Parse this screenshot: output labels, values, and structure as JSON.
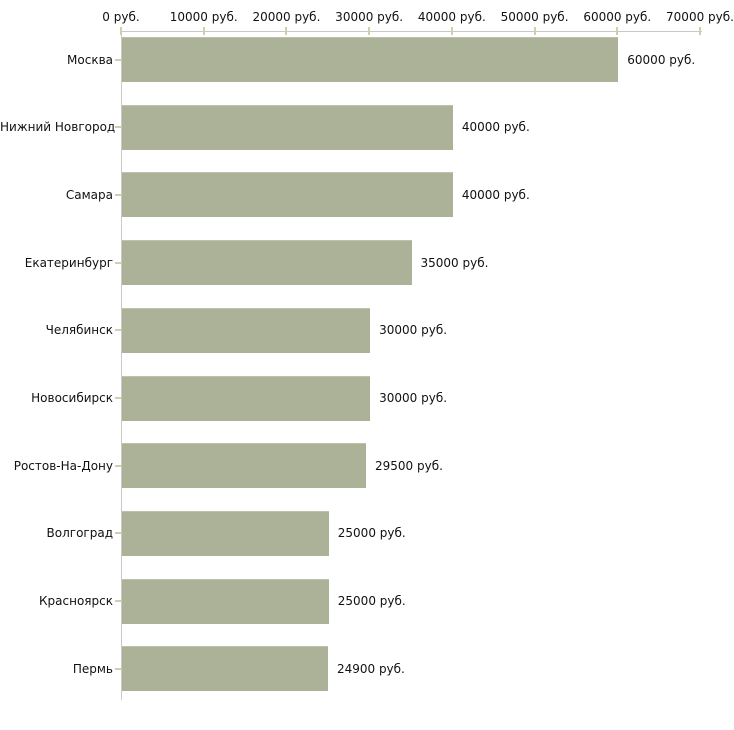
{
  "chart_data": {
    "type": "bar",
    "orientation": "horizontal",
    "title": "",
    "xlabel": "",
    "ylabel": "",
    "xlim": [
      0,
      70000
    ],
    "grid": false,
    "legend": false,
    "x_axis_position": "top",
    "x_tick_values": [
      0,
      10000,
      20000,
      30000,
      40000,
      50000,
      60000,
      70000
    ],
    "x_tick_labels": [
      "0 руб.",
      "10000 руб.",
      "20000 руб.",
      "30000 руб.",
      "40000 руб.",
      "50000 руб.",
      "60000 руб.",
      "70000 руб."
    ],
    "categories": [
      "Москва",
      "Нижний Новгород",
      "Самара",
      "Екатеринбург",
      "Челябинск",
      "Новосибирск",
      "Ростов-На-Дону",
      "Волгоград",
      "Красноярск",
      "Пермь"
    ],
    "values": [
      60000,
      40000,
      40000,
      35000,
      30000,
      30000,
      29500,
      25000,
      25000,
      24900
    ],
    "value_labels": [
      "60000 руб.",
      "40000 руб.",
      "40000 руб.",
      "35000 руб.",
      "30000 руб.",
      "30000 руб.",
      "29500 руб.",
      "25000 руб.",
      "25000 руб.",
      "24900 руб."
    ],
    "colors": {
      "bar_fill": "#acb298",
      "bar_top_edge": "#bdc3ab",
      "axis_line": "#c9c9c5",
      "tick_mark": "#d2cdab",
      "text": "#111111",
      "background": "#ffffff"
    }
  }
}
